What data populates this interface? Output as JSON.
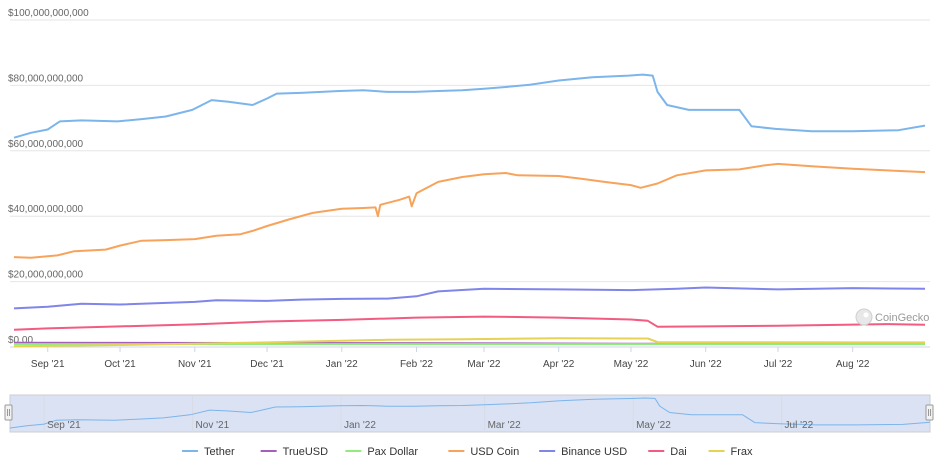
{
  "credit": "CoinGecko",
  "chart_data": {
    "type": "line",
    "title": "",
    "xlabel": "",
    "ylabel": "",
    "ylim": [
      0,
      100000000000
    ],
    "y_ticks": [
      {
        "value": 0,
        "label": "$0.00"
      },
      {
        "value": 20000000000,
        "label": "$20,000,000,000"
      },
      {
        "value": 40000000000,
        "label": "$40,000,000,000"
      },
      {
        "value": 60000000000,
        "label": "$60,000,000,000"
      },
      {
        "value": 80000000000,
        "label": "$80,000,000,000"
      },
      {
        "value": 100000000000,
        "label": "$100,000,000,000"
      }
    ],
    "x_range": [
      "2021-08-18",
      "2022-08-31"
    ],
    "x_ticks": [
      {
        "date": "2021-09-01",
        "label": "Sep '21"
      },
      {
        "date": "2021-10-01",
        "label": "Oct '21"
      },
      {
        "date": "2021-11-01",
        "label": "Nov '21"
      },
      {
        "date": "2021-12-01",
        "label": "Dec '21"
      },
      {
        "date": "2022-01-01",
        "label": "Jan '22"
      },
      {
        "date": "2022-02-01",
        "label": "Feb '22"
      },
      {
        "date": "2022-03-01",
        "label": "Mar '22"
      },
      {
        "date": "2022-04-01",
        "label": "Apr '22"
      },
      {
        "date": "2022-05-01",
        "label": "May '22"
      },
      {
        "date": "2022-06-01",
        "label": "Jun '22"
      },
      {
        "date": "2022-07-01",
        "label": "Jul '22"
      },
      {
        "date": "2022-08-01",
        "label": "Aug '22"
      }
    ],
    "grid": true,
    "legend_position": "bottom",
    "series": [
      {
        "name": "Tether",
        "color": "#7cb5ec",
        "points": [
          [
            "2021-08-18",
            64000000000
          ],
          [
            "2021-08-25",
            65500000000
          ],
          [
            "2021-09-01",
            66500000000
          ],
          [
            "2021-09-06",
            69000000000
          ],
          [
            "2021-09-15",
            69300000000
          ],
          [
            "2021-09-30",
            69000000000
          ],
          [
            "2021-10-10",
            69700000000
          ],
          [
            "2021-10-20",
            70500000000
          ],
          [
            "2021-10-31",
            72500000000
          ],
          [
            "2021-11-08",
            75500000000
          ],
          [
            "2021-11-15",
            75000000000
          ],
          [
            "2021-11-25",
            74000000000
          ],
          [
            "2021-12-01",
            76000000000
          ],
          [
            "2021-12-05",
            77500000000
          ],
          [
            "2021-12-15",
            77700000000
          ],
          [
            "2021-12-31",
            78300000000
          ],
          [
            "2022-01-10",
            78500000000
          ],
          [
            "2022-01-20",
            78000000000
          ],
          [
            "2022-01-31",
            78000000000
          ],
          [
            "2022-02-10",
            78300000000
          ],
          [
            "2022-02-20",
            78500000000
          ],
          [
            "2022-03-01",
            79000000000
          ],
          [
            "2022-03-10",
            79500000000
          ],
          [
            "2022-03-20",
            80200000000
          ],
          [
            "2022-04-01",
            81500000000
          ],
          [
            "2022-04-15",
            82500000000
          ],
          [
            "2022-04-30",
            83000000000
          ],
          [
            "2022-05-06",
            83300000000
          ],
          [
            "2022-05-10",
            83000000000
          ],
          [
            "2022-05-12",
            78000000000
          ],
          [
            "2022-05-16",
            74000000000
          ],
          [
            "2022-05-25",
            72500000000
          ],
          [
            "2022-06-15",
            72500000000
          ],
          [
            "2022-06-20",
            67500000000
          ],
          [
            "2022-06-30",
            66700000000
          ],
          [
            "2022-07-15",
            66000000000
          ],
          [
            "2022-08-01",
            66000000000
          ],
          [
            "2022-08-20",
            66300000000
          ],
          [
            "2022-08-31",
            67700000000
          ]
        ]
      },
      {
        "name": "TrueUSD",
        "color": "#a45fb8",
        "points": [
          [
            "2021-08-18",
            1300000000
          ],
          [
            "2022-01-15",
            1200000000
          ],
          [
            "2022-05-01",
            1000000000
          ],
          [
            "2022-08-31",
            1000000000
          ]
        ]
      },
      {
        "name": "Pax Dollar",
        "color": "#90ed7d",
        "points": [
          [
            "2021-08-18",
            900000000
          ],
          [
            "2022-01-15",
            900000000
          ],
          [
            "2022-05-01",
            900000000
          ],
          [
            "2022-08-31",
            900000000
          ]
        ]
      },
      {
        "name": "USD Coin",
        "color": "#f7a35c",
        "points": [
          [
            "2021-08-18",
            27500000000
          ],
          [
            "2021-08-25",
            27300000000
          ],
          [
            "2021-09-05",
            28000000000
          ],
          [
            "2021-09-12",
            29300000000
          ],
          [
            "2021-09-25",
            29800000000
          ],
          [
            "2021-10-01",
            31000000000
          ],
          [
            "2021-10-10",
            32500000000
          ],
          [
            "2021-10-20",
            32700000000
          ],
          [
            "2021-11-01",
            33000000000
          ],
          [
            "2021-11-10",
            34000000000
          ],
          [
            "2021-11-20",
            34500000000
          ],
          [
            "2021-11-25",
            35500000000
          ],
          [
            "2021-12-01",
            37000000000
          ],
          [
            "2021-12-10",
            39000000000
          ],
          [
            "2021-12-20",
            41000000000
          ],
          [
            "2022-01-01",
            42300000000
          ],
          [
            "2022-01-10",
            42500000000
          ],
          [
            "2022-01-15",
            42700000000
          ],
          [
            "2022-01-16",
            40000000000
          ],
          [
            "2022-01-17",
            43500000000
          ],
          [
            "2022-01-25",
            45000000000
          ],
          [
            "2022-01-29",
            46000000000
          ],
          [
            "2022-01-30",
            43000000000
          ],
          [
            "2022-02-01",
            47000000000
          ],
          [
            "2022-02-10",
            50500000000
          ],
          [
            "2022-02-20",
            52000000000
          ],
          [
            "2022-03-01",
            52800000000
          ],
          [
            "2022-03-10",
            53200000000
          ],
          [
            "2022-03-15",
            52500000000
          ],
          [
            "2022-04-01",
            52300000000
          ],
          [
            "2022-04-10",
            51500000000
          ],
          [
            "2022-04-20",
            50500000000
          ],
          [
            "2022-05-01",
            49500000000
          ],
          [
            "2022-05-05",
            48700000000
          ],
          [
            "2022-05-12",
            50000000000
          ],
          [
            "2022-05-20",
            52500000000
          ],
          [
            "2022-06-01",
            54000000000
          ],
          [
            "2022-06-15",
            54300000000
          ],
          [
            "2022-06-25",
            55500000000
          ],
          [
            "2022-07-01",
            56000000000
          ],
          [
            "2022-07-15",
            55300000000
          ],
          [
            "2022-08-01",
            54500000000
          ],
          [
            "2022-08-31",
            53500000000
          ]
        ]
      },
      {
        "name": "Binance USD",
        "color": "#8085e9",
        "points": [
          [
            "2021-08-18",
            11800000000
          ],
          [
            "2021-09-01",
            12300000000
          ],
          [
            "2021-09-15",
            13200000000
          ],
          [
            "2021-10-01",
            13000000000
          ],
          [
            "2021-11-01",
            13800000000
          ],
          [
            "2021-11-10",
            14300000000
          ],
          [
            "2021-12-01",
            14100000000
          ],
          [
            "2021-12-15",
            14500000000
          ],
          [
            "2022-01-01",
            14700000000
          ],
          [
            "2022-01-20",
            14800000000
          ],
          [
            "2022-02-01",
            15500000000
          ],
          [
            "2022-02-10",
            17000000000
          ],
          [
            "2022-03-01",
            17800000000
          ],
          [
            "2022-04-01",
            17600000000
          ],
          [
            "2022-05-01",
            17400000000
          ],
          [
            "2022-05-20",
            17800000000
          ],
          [
            "2022-06-01",
            18200000000
          ],
          [
            "2022-07-01",
            17600000000
          ],
          [
            "2022-08-01",
            18000000000
          ],
          [
            "2022-08-31",
            17800000000
          ]
        ]
      },
      {
        "name": "Dai",
        "color": "#f15c80",
        "points": [
          [
            "2021-08-18",
            5300000000
          ],
          [
            "2021-09-01",
            5700000000
          ],
          [
            "2021-10-01",
            6300000000
          ],
          [
            "2021-11-01",
            6900000000
          ],
          [
            "2021-12-01",
            7800000000
          ],
          [
            "2022-01-01",
            8300000000
          ],
          [
            "2022-02-01",
            9000000000
          ],
          [
            "2022-03-01",
            9300000000
          ],
          [
            "2022-04-01",
            9000000000
          ],
          [
            "2022-05-01",
            8400000000
          ],
          [
            "2022-05-08",
            8000000000
          ],
          [
            "2022-05-12",
            6200000000
          ],
          [
            "2022-06-01",
            6300000000
          ],
          [
            "2022-07-01",
            6500000000
          ],
          [
            "2022-08-15",
            7000000000
          ],
          [
            "2022-08-31",
            6800000000
          ]
        ]
      },
      {
        "name": "Frax",
        "color": "#e4d354",
        "points": [
          [
            "2021-08-18",
            200000000
          ],
          [
            "2021-10-01",
            600000000
          ],
          [
            "2021-12-01",
            1400000000
          ],
          [
            "2022-01-20",
            2200000000
          ],
          [
            "2022-02-20",
            2400000000
          ],
          [
            "2022-04-01",
            2700000000
          ],
          [
            "2022-05-08",
            2600000000
          ],
          [
            "2022-05-12",
            1500000000
          ],
          [
            "2022-08-31",
            1400000000
          ]
        ]
      }
    ],
    "navigator": {
      "series": "Tether",
      "x_ticks": [
        {
          "date": "2021-09-01",
          "label": "Sep '21"
        },
        {
          "date": "2021-11-01",
          "label": "Nov '21"
        },
        {
          "date": "2022-01-01",
          "label": "Jan '22"
        },
        {
          "date": "2022-03-01",
          "label": "Mar '22"
        },
        {
          "date": "2022-05-01",
          "label": "May '22"
        },
        {
          "date": "2022-07-01",
          "label": "Jul '22"
        }
      ]
    }
  }
}
